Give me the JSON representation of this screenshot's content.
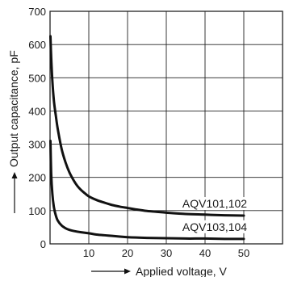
{
  "chart_data": {
    "type": "line",
    "title": "",
    "xlabel": "Applied voltage, V",
    "ylabel": "Output capacitance, pF",
    "xlim": [
      0,
      60
    ],
    "ylim": [
      0,
      700
    ],
    "xticks": [
      10,
      20,
      30,
      40,
      50
    ],
    "yticks": [
      0,
      100,
      200,
      300,
      400,
      500,
      600,
      700
    ],
    "grid": true,
    "series": [
      {
        "name": "AQV101,102",
        "x": [
          0.1,
          0.3,
          0.6,
          1,
          1.5,
          2,
          3,
          4,
          5,
          6,
          7,
          8,
          9,
          10,
          12,
          14,
          16,
          18,
          20,
          22,
          25,
          28,
          30,
          35,
          40,
          45,
          50
        ],
        "y": [
          625,
          560,
          490,
          430,
          385,
          345,
          285,
          245,
          215,
          193,
          175,
          162,
          152,
          143,
          132,
          124,
          117,
          112,
          108,
          104,
          99,
          96,
          94,
          90,
          88,
          86,
          85
        ]
      },
      {
        "name": "AQV103,104",
        "x": [
          0.1,
          0.3,
          0.6,
          1,
          1.5,
          2,
          3,
          4,
          5,
          6,
          8,
          10,
          12,
          15,
          18,
          20,
          25,
          30,
          35,
          40,
          45,
          50
        ],
        "y": [
          310,
          210,
          150,
          110,
          85,
          70,
          55,
          47,
          42,
          39,
          35,
          32,
          28,
          25,
          22,
          20,
          18,
          17,
          16,
          16,
          15,
          15
        ]
      }
    ]
  }
}
